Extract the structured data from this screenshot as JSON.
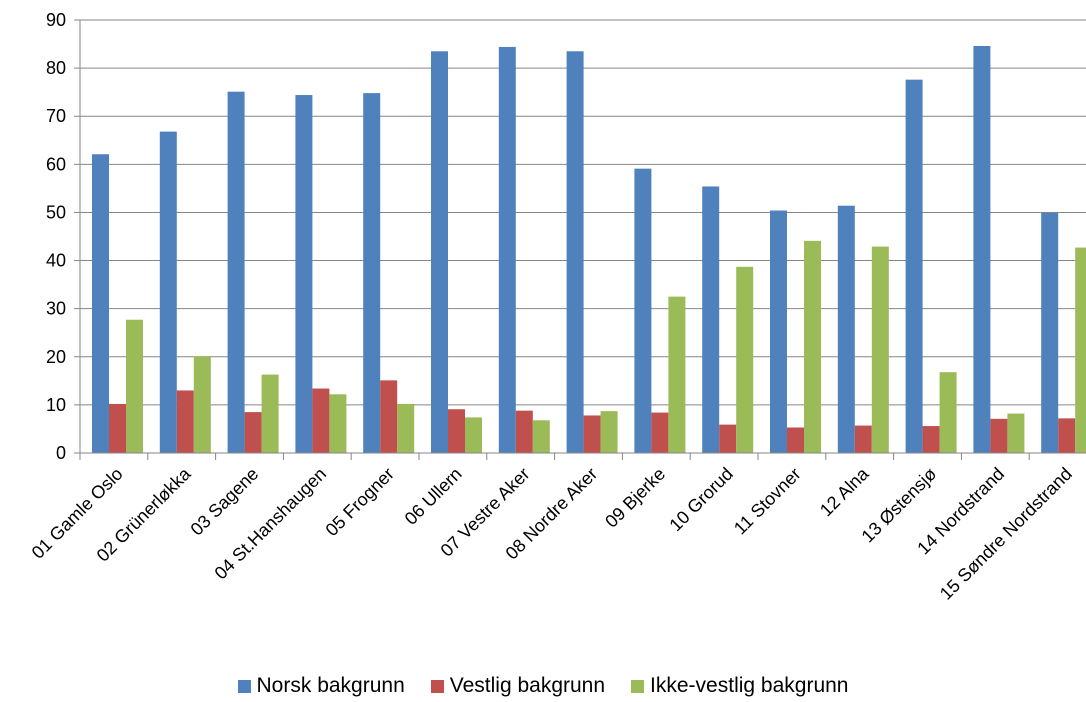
{
  "chart_data": {
    "type": "bar",
    "title": "",
    "xlabel": "",
    "ylabel": "",
    "ylim": [
      0,
      90
    ],
    "yticks": [
      0,
      10,
      20,
      30,
      40,
      50,
      60,
      70,
      80,
      90
    ],
    "grid": true,
    "legend_position": "bottom",
    "categories": [
      "01 Gamle Oslo",
      "02 Grünerløkka",
      "03 Sagene",
      "04 St.Hanshaugen",
      "05 Frogner",
      "06 Ullern",
      "07 Vestre Aker",
      "08 Nordre Aker",
      "09 Bjerke",
      "10 Grorud",
      "11 Stovner",
      "12 Alna",
      "13 Østensjø",
      "14 Nordstrand",
      "15 Søndre Nordstrand"
    ],
    "series": [
      {
        "name": "Norsk bakgrunn",
        "color": "#4F81BD",
        "values": [
          62.1,
          66.8,
          75.1,
          74.4,
          74.8,
          83.5,
          84.4,
          83.5,
          59.1,
          55.4,
          50.4,
          51.4,
          77.6,
          84.6,
          49.9
        ]
      },
      {
        "name": "Vestlig bakgrunn",
        "color": "#C0504D",
        "values": [
          10.2,
          13.0,
          8.5,
          13.4,
          15.1,
          9.1,
          8.8,
          7.8,
          8.4,
          5.9,
          5.3,
          5.7,
          5.6,
          7.1,
          7.2
        ]
      },
      {
        "name": "Ikke-vestlig bakgrunn",
        "color": "#9BBB59",
        "values": [
          27.7,
          20.1,
          16.3,
          12.2,
          10.2,
          7.4,
          6.8,
          8.7,
          32.5,
          38.7,
          44.1,
          42.9,
          16.8,
          8.2,
          42.7
        ]
      }
    ]
  }
}
